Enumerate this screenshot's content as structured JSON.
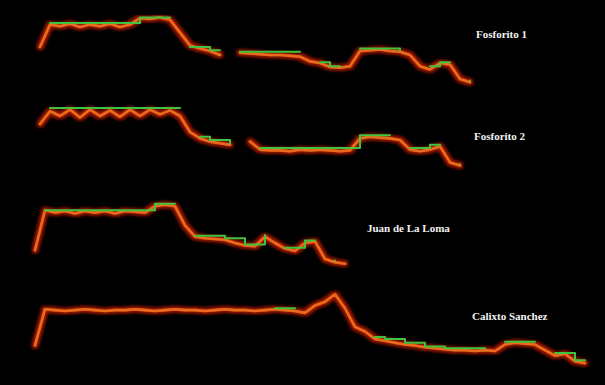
{
  "chart_data": [
    {
      "type": "line",
      "title": "Fosforito 1",
      "xlim": [
        0,
        570
      ],
      "ylim": [
        0,
        100
      ],
      "tick_labels": false,
      "x": [
        10,
        20,
        30,
        40,
        50,
        60,
        70,
        80,
        90,
        100,
        110,
        120,
        130,
        140,
        150,
        160,
        170,
        180,
        190,
        200,
        210,
        220,
        230,
        240,
        250,
        260,
        270,
        280,
        290,
        300,
        310,
        320,
        330,
        340,
        350,
        360,
        370,
        380,
        390,
        400,
        410,
        420,
        430,
        440
      ],
      "series": [
        {
          "type": "line",
          "color": "#ec6a1e",
          "values": [
            60,
            88,
            86,
            89,
            85,
            88,
            86,
            89,
            85,
            88,
            96,
            95,
            97,
            94,
            78,
            62,
            58,
            55,
            50,
            null,
            53,
            52,
            51,
            50,
            50,
            49,
            48,
            42,
            40,
            35,
            34,
            36,
            55,
            56,
            57,
            55,
            54,
            50,
            36,
            32,
            40,
            38,
            20,
            16
          ]
        },
        {
          "type": "step",
          "color": "#3ec43e",
          "values": [
            null,
            90,
            90,
            90,
            90,
            90,
            90,
            90,
            90,
            90,
            97,
            97,
            97,
            97,
            null,
            60,
            60,
            56,
            56,
            null,
            54,
            54,
            54,
            54,
            54,
            54,
            54,
            null,
            41,
            36,
            36,
            null,
            58,
            58,
            58,
            58,
            55,
            null,
            null,
            36,
            41,
            41,
            null,
            18
          ]
        }
      ]
    },
    {
      "type": "line",
      "title": "Fosforito 2",
      "xlim": [
        0,
        570
      ],
      "ylim": [
        0,
        100
      ],
      "tick_labels": false,
      "x": [
        10,
        20,
        30,
        40,
        50,
        60,
        70,
        80,
        90,
        100,
        110,
        120,
        130,
        140,
        150,
        160,
        170,
        180,
        190,
        200,
        210,
        220,
        230,
        240,
        250,
        260,
        270,
        280,
        290,
        300,
        310,
        320,
        330,
        340,
        350,
        360,
        370,
        380,
        390,
        400,
        410,
        420,
        430
      ],
      "series": [
        {
          "type": "line",
          "color": "#ec6a1e",
          "values": [
            70,
            86,
            80,
            88,
            78,
            88,
            80,
            87,
            79,
            88,
            80,
            88,
            82,
            87,
            80,
            60,
            52,
            48,
            46,
            44,
            null,
            48,
            38,
            37,
            37,
            36,
            38,
            37,
            38,
            37,
            36,
            37,
            52,
            54,
            53,
            52,
            50,
            38,
            36,
            38,
            42,
            22,
            18
          ]
        },
        {
          "type": "step",
          "color": "#3ec43e",
          "values": [
            null,
            90,
            90,
            90,
            90,
            90,
            90,
            90,
            90,
            90,
            90,
            90,
            90,
            90,
            90,
            null,
            54,
            50,
            50,
            46,
            null,
            null,
            40,
            40,
            40,
            40,
            40,
            40,
            40,
            40,
            40,
            40,
            56,
            56,
            56,
            56,
            null,
            40,
            40,
            44,
            44,
            null,
            20
          ]
        }
      ]
    },
    {
      "type": "line",
      "title": "Juan de La Loma",
      "xlim": [
        0,
        570
      ],
      "ylim": [
        0,
        100
      ],
      "tick_labels": false,
      "x": [
        5,
        15,
        25,
        35,
        45,
        55,
        65,
        75,
        85,
        95,
        105,
        115,
        125,
        135,
        145,
        155,
        165,
        175,
        185,
        195,
        205,
        215,
        225,
        235,
        245,
        255,
        265,
        275,
        285,
        295,
        305,
        315
      ],
      "series": [
        {
          "type": "line",
          "color": "#ec6a1e",
          "values": [
            31,
            81,
            78,
            80,
            77,
            80,
            78,
            80,
            77,
            80,
            79,
            78,
            86,
            88,
            86,
            62,
            48,
            46,
            45,
            44,
            40,
            37,
            36,
            48,
            40,
            33,
            30,
            40,
            42,
            20,
            16,
            14
          ]
        },
        {
          "type": "step",
          "color": "#3ec43e",
          "values": [
            null,
            81,
            81,
            81,
            81,
            81,
            81,
            81,
            81,
            81,
            81,
            81,
            89,
            89,
            89,
            null,
            49,
            49,
            49,
            46,
            46,
            38,
            38,
            50,
            null,
            34,
            34,
            43,
            43,
            null,
            18,
            null
          ]
        }
      ]
    },
    {
      "type": "line",
      "title": "Calixto Sanchez",
      "xlim": [
        0,
        570
      ],
      "ylim": [
        0,
        100
      ],
      "tick_labels": false,
      "x": [
        5,
        15,
        25,
        35,
        45,
        55,
        65,
        75,
        85,
        95,
        105,
        115,
        125,
        135,
        145,
        155,
        165,
        175,
        185,
        195,
        205,
        215,
        225,
        235,
        245,
        255,
        265,
        275,
        285,
        295,
        305,
        315,
        325,
        335,
        345,
        355,
        365,
        375,
        385,
        395,
        405,
        415,
        425,
        435,
        445,
        455,
        465,
        475,
        485,
        495,
        505,
        515,
        525,
        535,
        545,
        555
      ],
      "series": [
        {
          "type": "line",
          "color": "#ec6a1e",
          "values": [
            35,
            74,
            73,
            72,
            73,
            74,
            73,
            72,
            73,
            73,
            74,
            73,
            72,
            73,
            74,
            73,
            73,
            72,
            73,
            74,
            73,
            73,
            72,
            73,
            74,
            73,
            72,
            70,
            78,
            82,
            90,
            75,
            55,
            50,
            42,
            40,
            38,
            36,
            35,
            33,
            32,
            31,
            30,
            30,
            29,
            30,
            29,
            36,
            38,
            37,
            36,
            30,
            24,
            26,
            18,
            16
          ]
        },
        {
          "type": "step",
          "color": "#3ec43e",
          "values": [
            null,
            null,
            null,
            null,
            null,
            null,
            null,
            null,
            null,
            null,
            null,
            null,
            null,
            null,
            null,
            null,
            null,
            null,
            null,
            null,
            null,
            null,
            null,
            null,
            75,
            75,
            75,
            null,
            null,
            null,
            null,
            null,
            null,
            null,
            44,
            42,
            42,
            38,
            38,
            34,
            34,
            32,
            32,
            32,
            32,
            32,
            null,
            39,
            39,
            39,
            39,
            null,
            27,
            27,
            19,
            19
          ]
        }
      ]
    }
  ]
}
